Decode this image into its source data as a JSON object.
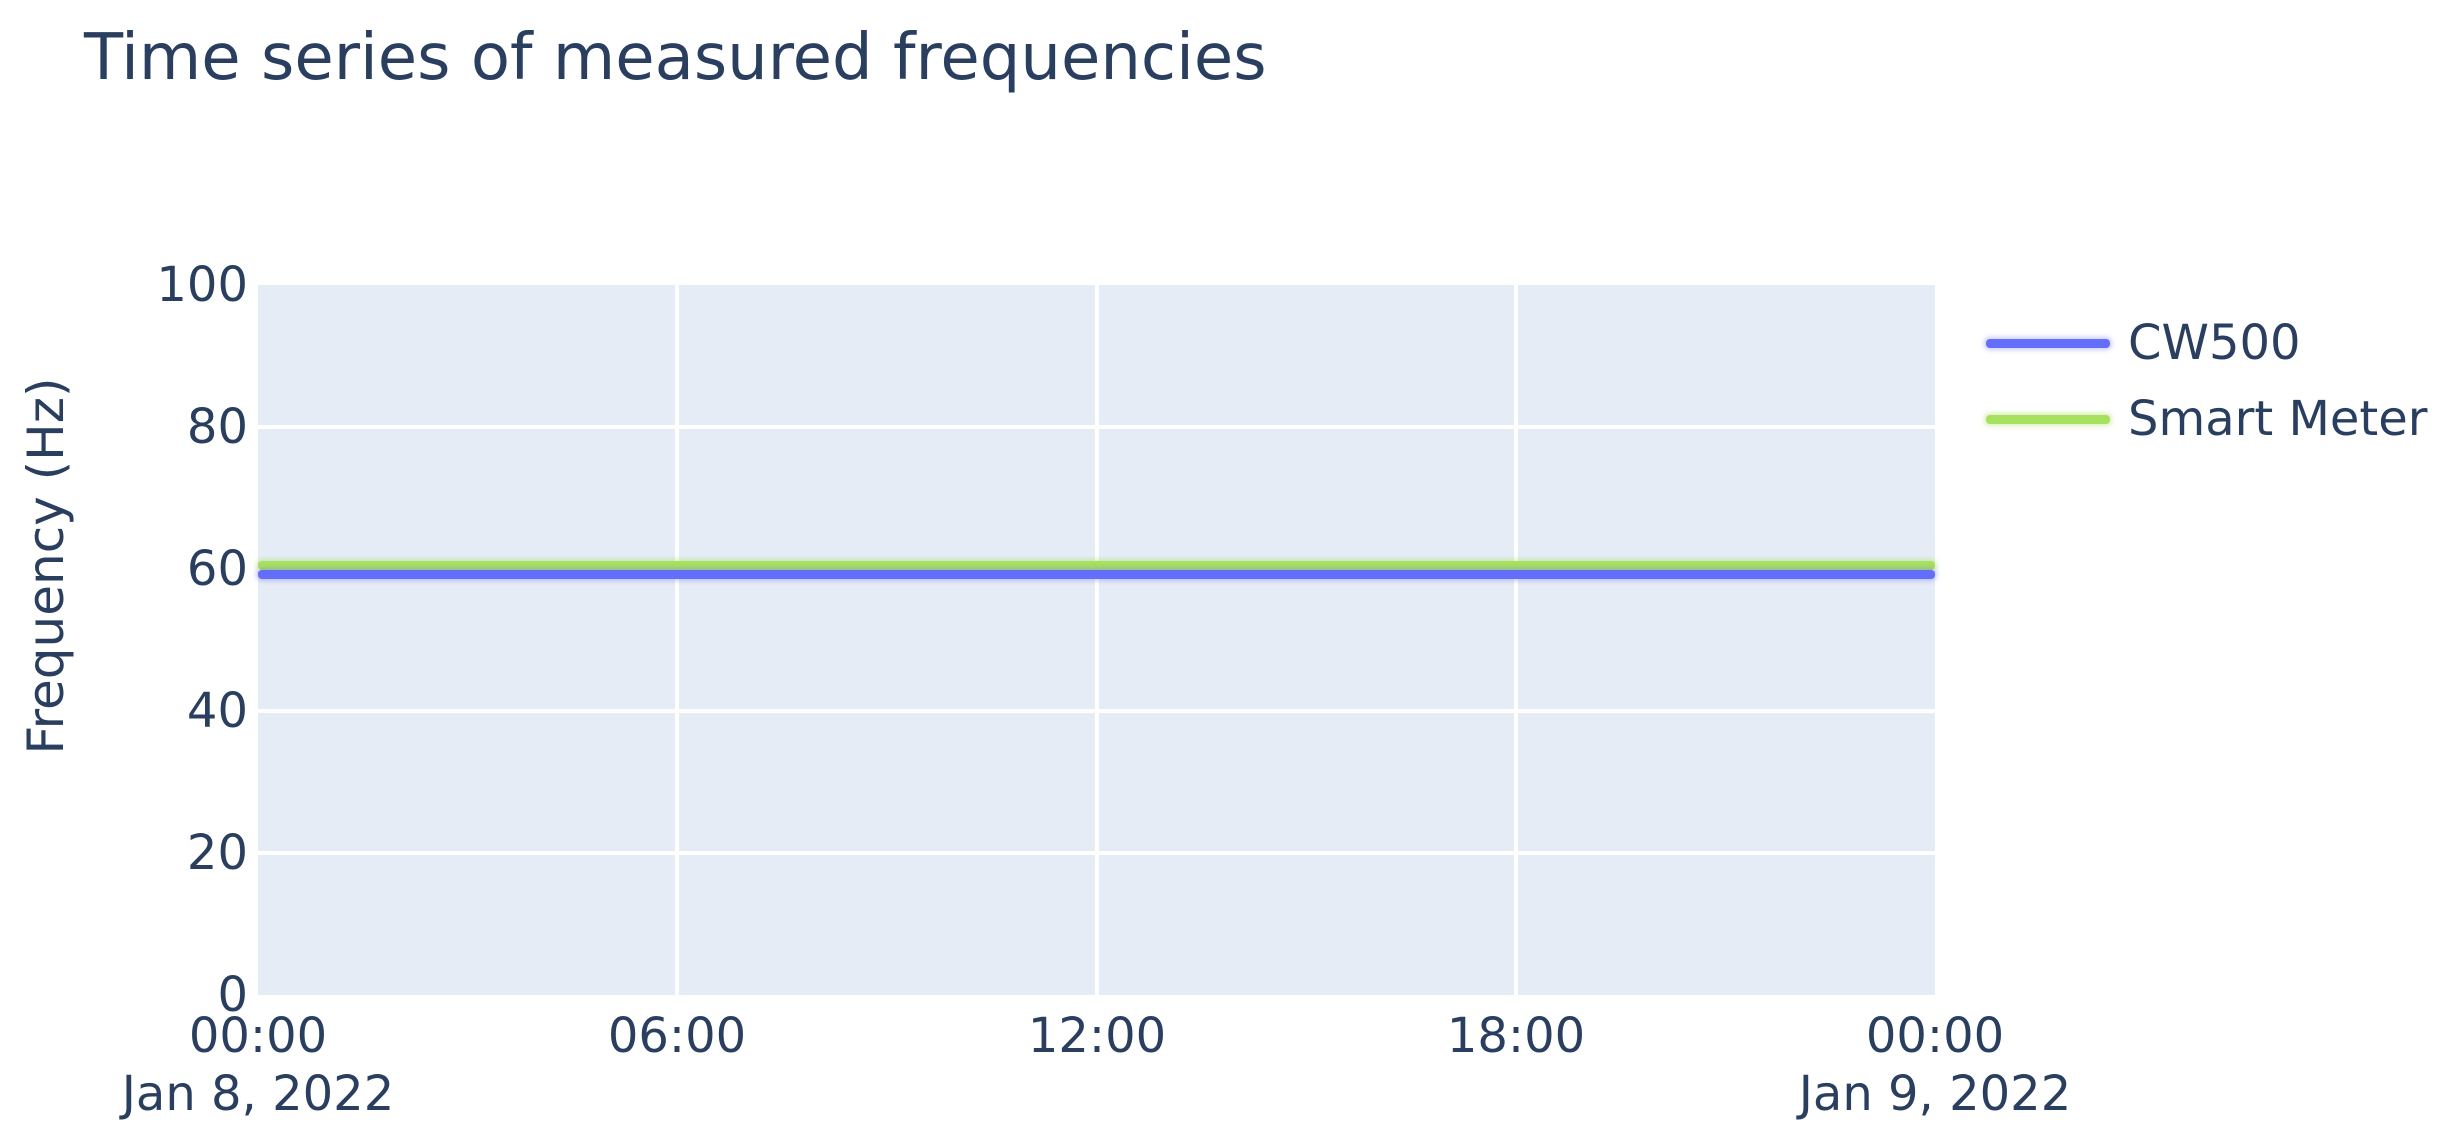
{
  "chart_data": {
    "type": "line",
    "title": "Time series of measured frequencies",
    "xlabel": "",
    "ylabel": "Frequency (Hz)",
    "ylim": [
      0,
      100
    ],
    "y_tick_labels": [
      "100",
      "80",
      "60",
      "40",
      "20",
      "0"
    ],
    "y_tick_values": [
      100,
      80,
      60,
      40,
      20,
      0
    ],
    "x_tick_labels": [
      "00:00",
      "06:00",
      "12:00",
      "18:00",
      "00:00"
    ],
    "x_date_labels": [
      "Jan 8, 2022",
      "Jan 9, 2022"
    ],
    "x_range": [
      "Jan 8, 2022 00:00",
      "Jan 9, 2022 00:00"
    ],
    "grid": true,
    "legend_position": "right-outside-top",
    "plot_bgcolor": "#e5ecf6",
    "grid_color": "#ffffff",
    "text_color": "#2a3f5f",
    "series": [
      {
        "name": "CW500",
        "color": "#636efa",
        "constant_value_hz": 60,
        "x": [
          "Jan 8 00:00",
          "Jan 9 00:00"
        ],
        "y": [
          60,
          60
        ]
      },
      {
        "name": "Smart Meter",
        "color": "#a8e060",
        "constant_value_hz": 60,
        "x": [
          "Jan 8 00:00",
          "Jan 9 00:00"
        ],
        "y": [
          60,
          60
        ]
      }
    ]
  }
}
